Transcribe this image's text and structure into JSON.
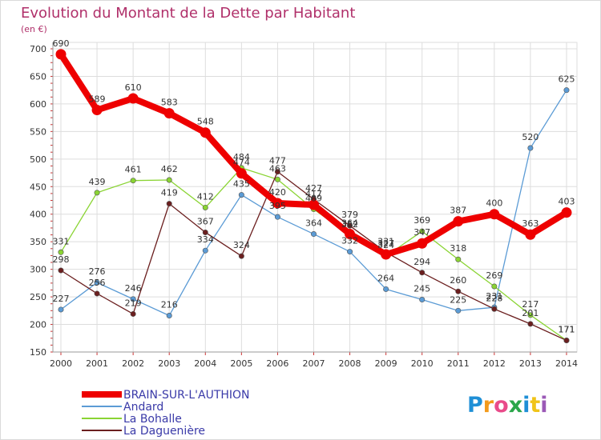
{
  "chart_data": {
    "type": "line",
    "title": "Evolution du Montant de la Dette par Habitant",
    "subtitle": "(en €)",
    "xlabel": "",
    "ylabel": "",
    "x": [
      "2000",
      "2001",
      "2002",
      "2003",
      "2004",
      "2005",
      "2006",
      "2007",
      "2008",
      "2009",
      "2010",
      "2011",
      "2012",
      "2013",
      "2014"
    ],
    "ylim": [
      150,
      700
    ],
    "yticks": [
      150,
      200,
      250,
      300,
      350,
      400,
      450,
      500,
      550,
      600,
      650,
      700
    ],
    "grid": true,
    "series": [
      {
        "name": "BRAIN-SUR-L'AUTHION",
        "color": "#ee0000",
        "values": [
          690,
          589,
          610,
          583,
          548,
          474,
          420,
          417,
          364,
          327,
          347,
          387,
          400,
          363,
          403
        ]
      },
      {
        "name": "Andard",
        "color": "#5b9bd5",
        "values": [
          227,
          276,
          246,
          216,
          334,
          435,
          395,
          364,
          332,
          264,
          245,
          225,
          231,
          520,
          625
        ]
      },
      {
        "name": "La Bohalle",
        "color": "#8ad433",
        "values": [
          331,
          439,
          461,
          462,
          412,
          484,
          463,
          409,
          362,
          324,
          369,
          318,
          269,
          217,
          171
        ]
      },
      {
        "name": "La Daguenière",
        "color": "#6b1f1f",
        "values": [
          298,
          256,
          219,
          419,
          367,
          324,
          477,
          427,
          379,
          331,
          294,
          260,
          228,
          201,
          171
        ]
      }
    ],
    "value_labels": [
      [
        "690",
        "589",
        "610",
        "583",
        "548",
        "474",
        "420",
        "417",
        "364",
        "327",
        "347",
        "387",
        "400",
        "363",
        "403"
      ],
      [
        "227",
        "276",
        "246",
        "216",
        "334",
        "435",
        "395",
        "364",
        "332",
        "264",
        "245",
        "225",
        "231",
        "520",
        "625"
      ],
      [
        "331",
        "439",
        "461",
        "462",
        "412",
        "484",
        "463",
        "409",
        "362",
        "324",
        "369",
        "318",
        "269",
        "217",
        "171"
      ],
      [
        "298",
        "256",
        "219",
        "419",
        "367",
        "324",
        "477",
        "427",
        "379",
        "331",
        "294",
        "260",
        "228",
        "201",
        "171"
      ]
    ]
  },
  "brand": {
    "letters": [
      "P",
      "r",
      "o",
      "x",
      "i",
      "t",
      "i"
    ]
  }
}
